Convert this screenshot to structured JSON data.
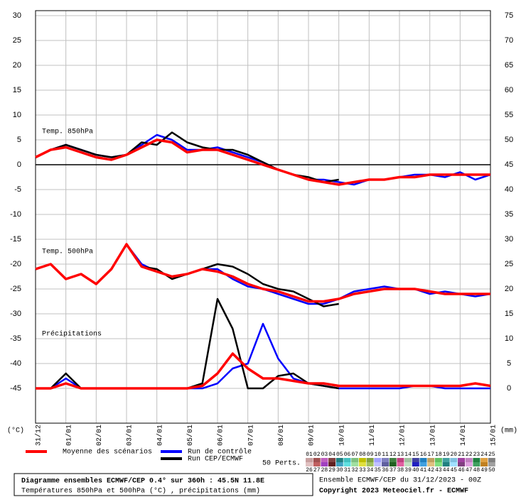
{
  "chart_data": {
    "type": "line",
    "categories": [
      "31/12",
      null,
      "01/01",
      null,
      "02/01",
      null,
      "03/01",
      null,
      "04/01",
      null,
      "05/01",
      null,
      "06/01",
      null,
      "07/01",
      null,
      "08/01",
      null,
      "09/01",
      null,
      "10/01",
      null,
      "11/01",
      null,
      "12/01",
      null,
      "13/01",
      null,
      "14/01",
      null,
      "15/01"
    ],
    "ylabel": "(°C)",
    "y2label": "(mm)",
    "ylim": [
      -52,
      31
    ],
    "yticks": [
      30,
      25,
      20,
      15,
      10,
      5,
      0,
      -5,
      -10,
      -15,
      -20,
      -25,
      -30,
      -35,
      -40,
      -45
    ],
    "y2lim": [
      -7,
      76
    ],
    "y2ticks": [
      75,
      70,
      65,
      60,
      55,
      50,
      45,
      40,
      35,
      30,
      25,
      20,
      15,
      10,
      5,
      0
    ],
    "grid": true,
    "annotations": [
      "Temp. 850hPa",
      "Temp. 500hPa",
      "Précipitations"
    ],
    "series": [
      {
        "name": "Run de contrôle",
        "color": "#0000ff",
        "t850": [
          1.5,
          3,
          4,
          3,
          2,
          1.5,
          2,
          4,
          6,
          5,
          3,
          3,
          3.5,
          2.5,
          1.5,
          0.5,
          -1,
          -2,
          -3,
          -3,
          -3.5,
          -4,
          -3,
          -3,
          -2.5,
          -2,
          -2,
          -2.5,
          -1.5,
          -3,
          -2
        ],
        "t500": [
          -21,
          -20,
          -23,
          -22,
          -24,
          -21,
          -16,
          -20,
          -21.5,
          -22.5,
          -22,
          -21,
          -21,
          -23,
          -24.5,
          -25,
          -26,
          -27,
          -28,
          -28,
          -27,
          -25.5,
          -25,
          -24.5,
          -25,
          -25,
          -26,
          -25.5,
          -26,
          -26.5,
          -26
        ],
        "precip": [
          0,
          0,
          2,
          0,
          0,
          0,
          0,
          0,
          0,
          0,
          0,
          0,
          1,
          4,
          5,
          13,
          6,
          2,
          1,
          0.5,
          0,
          0,
          0,
          0,
          0,
          0.5,
          0.5,
          0,
          0,
          0,
          0
        ]
      },
      {
        "name": "Run CEP/ECMWF",
        "color": "#000000",
        "t850": [
          1.5,
          3,
          4,
          3,
          2,
          1.5,
          2,
          4.5,
          4,
          6.5,
          4.5,
          3.5,
          3,
          3,
          2,
          0.5,
          -1,
          -2,
          -2.5,
          -3.5,
          -3,
          null,
          null,
          null,
          null,
          null,
          null,
          null,
          null,
          null,
          null
        ],
        "t500": [
          -21,
          -20,
          -23,
          -22,
          -24,
          -21,
          -16,
          -20.5,
          -21,
          -23,
          -22,
          -21,
          -20,
          -20.5,
          -22,
          -24,
          -25,
          -25.5,
          -27,
          -28.5,
          -28,
          null,
          null,
          null,
          null,
          null,
          null,
          null,
          null,
          null,
          null
        ],
        "precip": [
          0,
          0,
          3,
          0,
          0,
          0,
          0,
          0,
          0,
          0,
          0,
          1,
          18,
          12,
          0,
          0,
          2.5,
          3,
          1,
          0.5,
          0,
          null,
          null,
          null,
          null,
          null,
          null,
          null,
          null,
          null,
          null
        ]
      },
      {
        "name": "Moyenne des scénarios",
        "color": "#ff0000",
        "t850": [
          1.5,
          3,
          3.5,
          2.5,
          1.5,
          1,
          2,
          3.5,
          5,
          4.5,
          2.5,
          3,
          3,
          2,
          1,
          0,
          -1,
          -2,
          -3,
          -3.5,
          -4,
          -3.5,
          -3,
          -3,
          -2.5,
          -2.5,
          -2,
          -2,
          -2,
          -2,
          -2
        ],
        "t500": [
          -21,
          -20,
          -23,
          -22,
          -24,
          -21,
          -16,
          -20.5,
          -21.5,
          -22.5,
          -22,
          -21,
          -21.5,
          -22.5,
          -24,
          -25,
          -25.5,
          -26.5,
          -27.5,
          -27.5,
          -27,
          -26,
          -25.5,
          -25,
          -25,
          -25,
          -25.5,
          -26,
          -26,
          -26,
          -26
        ],
        "precip": [
          0,
          0,
          1,
          0,
          0,
          0,
          0,
          0,
          0,
          0,
          0,
          0.5,
          3,
          7,
          4,
          2,
          2,
          1.5,
          1,
          1,
          0.5,
          0.5,
          0.5,
          0.5,
          0.5,
          0.5,
          0.5,
          0.5,
          0.5,
          1,
          0.5
        ]
      }
    ],
    "perturbations": {
      "label": "50 Perts.",
      "members": [
        "01",
        "02",
        "03",
        "04",
        "05",
        "06",
        "07",
        "08",
        "09",
        "10",
        "11",
        "12",
        "13",
        "14",
        "15",
        "16",
        "17",
        "18",
        "19",
        "20",
        "21",
        "22",
        "23",
        "24",
        "25",
        "26",
        "27",
        "28",
        "29",
        "30",
        "31",
        "32",
        "33",
        "34",
        "35",
        "36",
        "37",
        "38",
        "39",
        "40",
        "41",
        "42",
        "43",
        "44",
        "45",
        "46",
        "47",
        "48",
        "49",
        "50"
      ],
      "colors": [
        "#c8a0a0",
        "#a05050",
        "#c060c0",
        "#804040",
        "#208080",
        "#40c0c0",
        "#80c080",
        "#c0c000",
        "#80a040",
        "#a0a0ff",
        "#8080c0",
        "#408040",
        "#c04080",
        "#a0c0a0",
        "#4040a0",
        "#2080c0",
        "#c0a060",
        "#60c060",
        "#40a0a0",
        "#80c0e0",
        "#a040a0",
        "#c080c0",
        "#208040",
        "#e0a040",
        "#808080",
        "#e0c0c0",
        "#c06060",
        "#a040c0",
        "#602020",
        "#40a0c0",
        "#60e0e0",
        "#a0e0a0",
        "#e0e040",
        "#a0c060",
        "#c0c0ff",
        "#6060a0",
        "#206020",
        "#e060a0",
        "#c0e0c0",
        "#2020c0",
        "#40a0e0",
        "#e0c080",
        "#80e080",
        "#208080",
        "#a0e0ff",
        "#804080",
        "#e0a0e0",
        "#40a060",
        "#c08020",
        "#a0a0a0"
      ]
    },
    "footer": {
      "title": "Diagramme ensembles ECMWF/CEP 0.4° sur 360h : 45.5N 11.8E",
      "subtitle": "Températures 850hPa et 500hPa (°C) , précipitations (mm)",
      "run": "Ensemble ECMWF/CEP du 31/12/2023 - 00Z",
      "copyright": "Copyright 2023 Meteociel.fr - ECMWF"
    }
  }
}
